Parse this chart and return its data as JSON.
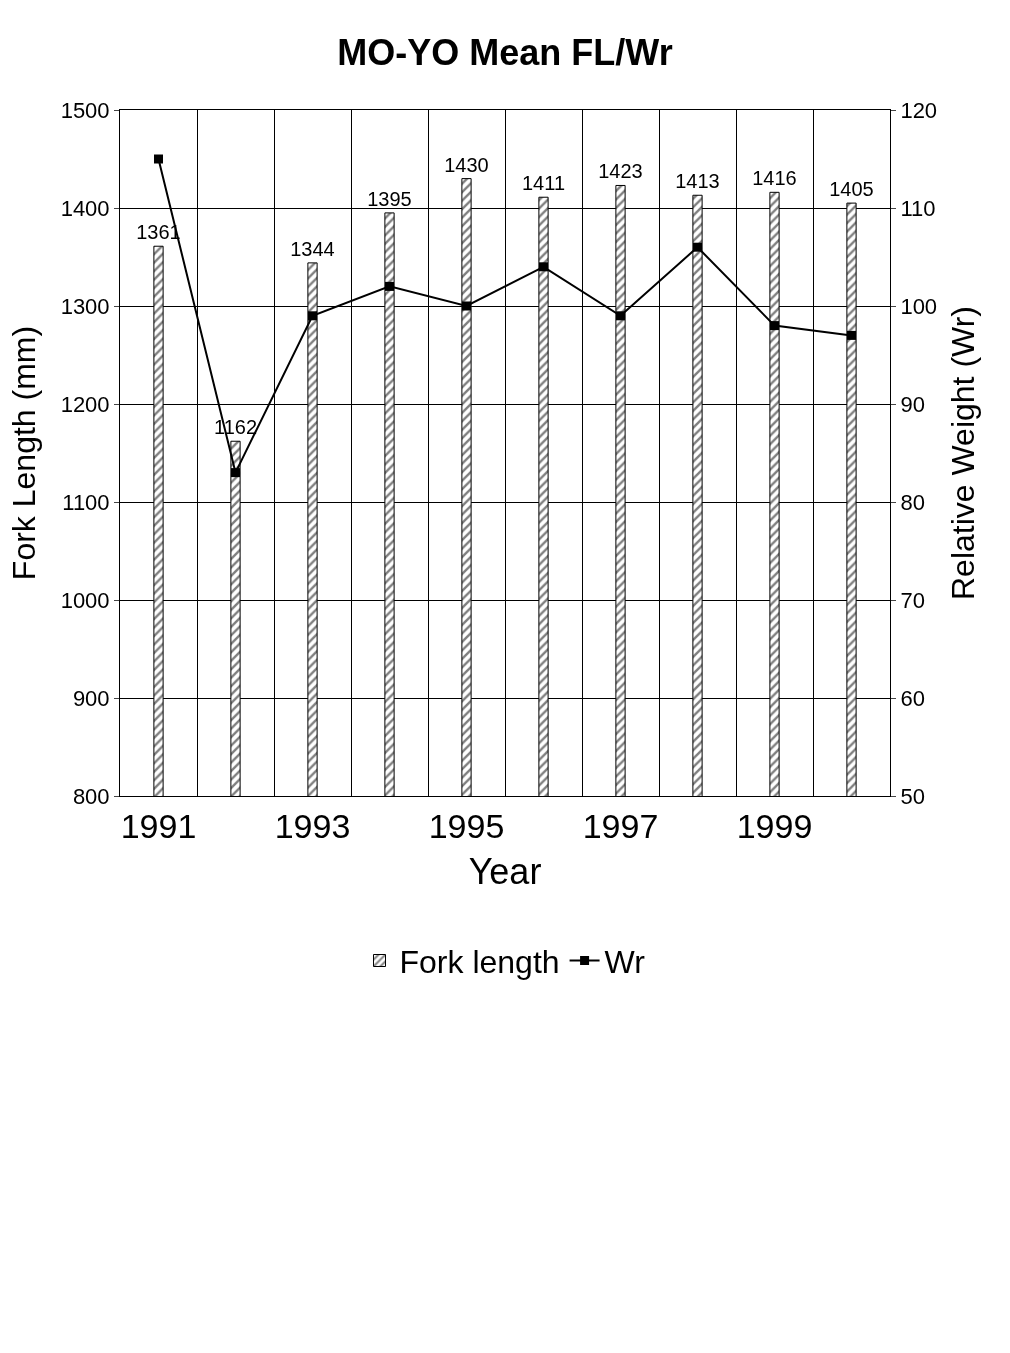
{
  "chart_data": {
    "type": "bar",
    "title": "MO-YO Mean FL/Wr",
    "xlabel": "Year",
    "ylabel": "Fork Length (mm)",
    "y2label": "Relative Weight (Wr)",
    "categories": [
      "1991",
      null,
      "1993",
      null,
      "1995",
      null,
      "1997",
      null,
      "1999",
      null
    ],
    "series": [
      {
        "name": "Fork length",
        "color": "#000000",
        "values": [
          1361,
          1162,
          1344,
          1395,
          1430,
          1411,
          1423,
          1413,
          1416,
          1405
        ],
        "value_labels": [
          "1361",
          "1162",
          "1344",
          "1395",
          "1430",
          "1411",
          "1423",
          "1413",
          "1416",
          "1405"
        ]
      },
      {
        "name": "Wr",
        "type": "line",
        "axis": "y2",
        "color": "#000000",
        "marker": "square",
        "values": [
          115,
          83,
          99,
          102,
          100,
          104,
          99,
          106,
          98,
          97
        ]
      }
    ],
    "ylim": [
      800,
      1500
    ],
    "yticks": [
      800,
      900,
      1000,
      1100,
      1200,
      1300,
      1400,
      1500
    ],
    "y2lim": [
      50,
      120
    ],
    "y2ticks": [
      50,
      60,
      70,
      80,
      90,
      100,
      110,
      120
    ],
    "grid": true,
    "legend": "bottom"
  }
}
